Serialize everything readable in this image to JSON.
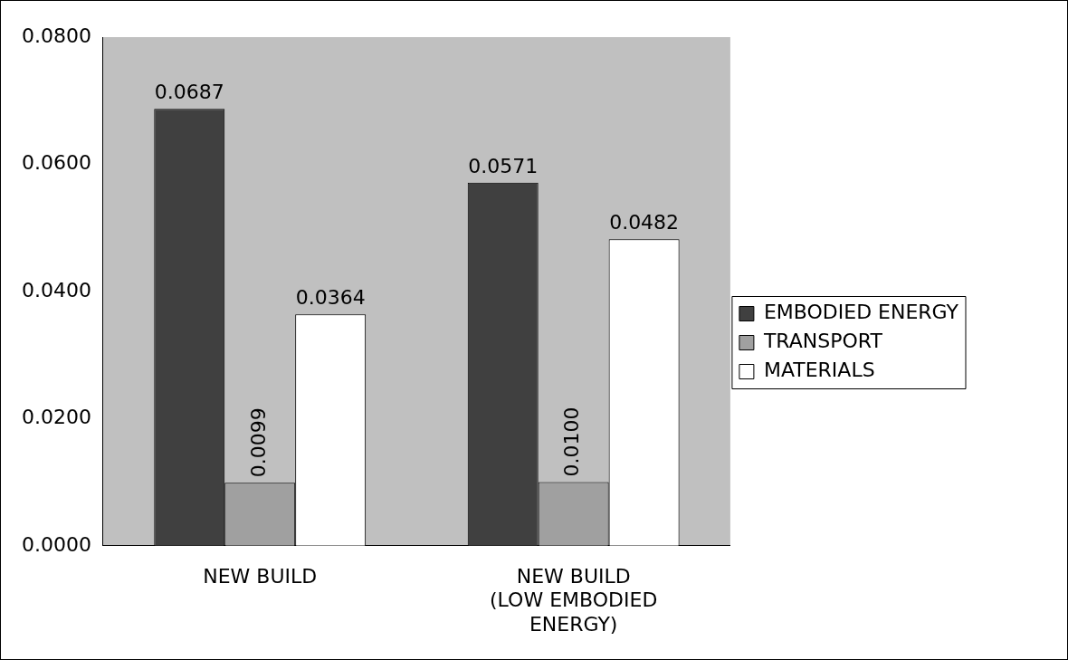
{
  "chart_data": {
    "type": "bar",
    "categories": [
      "NEW BUILD",
      "NEW BUILD (LOW EMBODIED ENERGY)"
    ],
    "series": [
      {
        "name": "EMBODIED ENERGY",
        "color": "#404040",
        "values": [
          0.0687,
          0.0571
        ],
        "value_labels": [
          "0.0687",
          "0.0571"
        ]
      },
      {
        "name": "TRANSPORT",
        "color": "#a0a0a0",
        "values": [
          0.0099,
          0.01
        ],
        "value_labels": [
          "0.0099",
          "0.0100"
        ]
      },
      {
        "name": "MATERIALS",
        "color": "#ffffff",
        "values": [
          0.0364,
          0.0482
        ],
        "value_labels": [
          "0.0364",
          "0.0482"
        ]
      }
    ],
    "ylim": [
      0,
      0.08
    ],
    "yticks": [
      {
        "value": 0,
        "label": "0.0000"
      },
      {
        "value": 0.02,
        "label": "0.0200"
      },
      {
        "value": 0.04,
        "label": "0.0400"
      },
      {
        "value": 0.06,
        "label": "0.0600"
      },
      {
        "value": 0.08,
        "label": "0.0800"
      }
    ],
    "grid": false,
    "legend": "right"
  }
}
